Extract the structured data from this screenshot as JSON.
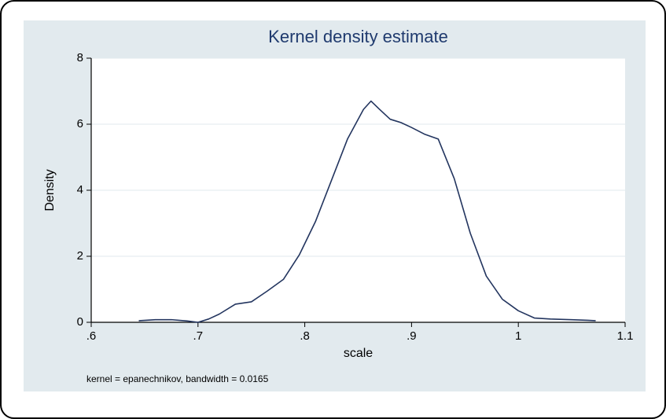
{
  "chart": {
    "type": "line",
    "title": "Kernel density estimate",
    "title_color": "#1f3a6e",
    "title_fontsize": 22,
    "xlabel": "scale",
    "ylabel": "Density",
    "label_fontsize": 16,
    "footnote": "kernel = epanechnikov, bandwidth = 0.0165",
    "footnote_fontsize": 12,
    "background_color": "#e2eaee",
    "plot_background_color": "#ffffff",
    "grid_color": "#e2eaee",
    "axis_line_color": "#000000",
    "line_color": "#23355f",
    "line_width": 1.6,
    "xlim": [
      0.6,
      1.1
    ],
    "ylim": [
      0,
      8
    ],
    "xticks": [
      0.6,
      0.7,
      0.8,
      0.9,
      1.0,
      1.1
    ],
    "xtick_labels": [
      ".6",
      ".7",
      ".8",
      ".9",
      "1",
      "1.1"
    ],
    "yticks": [
      0,
      2,
      4,
      6,
      8
    ],
    "ytick_labels": [
      "0",
      "2",
      "4",
      "6",
      "8"
    ],
    "tick_fontsize": 15,
    "series": {
      "x": [
        0.645,
        0.66,
        0.675,
        0.69,
        0.7,
        0.71,
        0.72,
        0.735,
        0.75,
        0.765,
        0.78,
        0.795,
        0.81,
        0.825,
        0.84,
        0.855,
        0.862,
        0.87,
        0.88,
        0.89,
        0.9,
        0.912,
        0.925,
        0.94,
        0.955,
        0.97,
        0.985,
        1.0,
        1.015,
        1.03,
        1.05,
        1.065,
        1.072
      ],
      "y": [
        0.05,
        0.08,
        0.08,
        0.04,
        0.0,
        0.1,
        0.25,
        0.55,
        0.62,
        0.95,
        1.3,
        2.05,
        3.05,
        4.3,
        5.55,
        6.45,
        6.7,
        6.45,
        6.15,
        6.05,
        5.9,
        5.7,
        5.55,
        4.35,
        2.7,
        1.4,
        0.7,
        0.35,
        0.13,
        0.1,
        0.08,
        0.06,
        0.05
      ]
    }
  }
}
